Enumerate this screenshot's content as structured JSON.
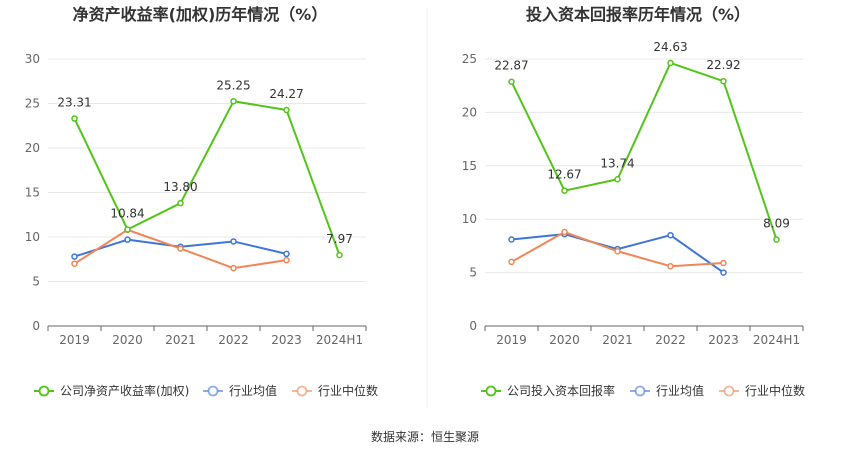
{
  "source_label": "数据来源：恒生聚源",
  "chart_data": [
    {
      "type": "line",
      "title": "净资产收益率(加权)历年情况（%）",
      "categories": [
        "2019",
        "2020",
        "2021",
        "2022",
        "2023",
        "2024H1"
      ],
      "ylim": [
        0,
        30
      ],
      "yticks": [
        0,
        5,
        10,
        15,
        20,
        25,
        30
      ],
      "grid": true,
      "legend_position": "bottom",
      "series": [
        {
          "name": "公司净资产收益率(加权)",
          "color": "#52c41a",
          "values": [
            23.31,
            10.84,
            13.8,
            25.25,
            24.27,
            7.97
          ],
          "labels": [
            "23.31",
            "10.84",
            "13.80",
            "25.25",
            "24.27",
            "7.97"
          ]
        },
        {
          "name": "行业均值",
          "color": "#3f75d9",
          "values": [
            7.8,
            9.7,
            8.9,
            9.5,
            8.1,
            null
          ]
        },
        {
          "name": "行业中位数",
          "color": "#f08657",
          "values": [
            7.0,
            10.8,
            8.7,
            6.5,
            7.4,
            null
          ]
        }
      ]
    },
    {
      "type": "line",
      "title": "投入资本回报率历年情况（%）",
      "categories": [
        "2019",
        "2020",
        "2021",
        "2022",
        "2023",
        "2024H1"
      ],
      "ylim": [
        0,
        25
      ],
      "yticks": [
        0,
        5,
        10,
        15,
        20,
        25
      ],
      "grid": true,
      "legend_position": "bottom",
      "series": [
        {
          "name": "公司投入资本回报率",
          "color": "#52c41a",
          "values": [
            22.87,
            12.67,
            13.74,
            24.63,
            22.92,
            8.09
          ],
          "labels": [
            "22.87",
            "12.67",
            "13.74",
            "24.63",
            "22.92",
            "8.09"
          ]
        },
        {
          "name": "行业均值",
          "color": "#3f75d9",
          "values": [
            8.1,
            8.6,
            7.2,
            8.5,
            5.0,
            null
          ]
        },
        {
          "name": "行业中位数",
          "color": "#f08657",
          "values": [
            6.0,
            8.8,
            7.0,
            5.6,
            5.9,
            null
          ]
        }
      ]
    }
  ]
}
